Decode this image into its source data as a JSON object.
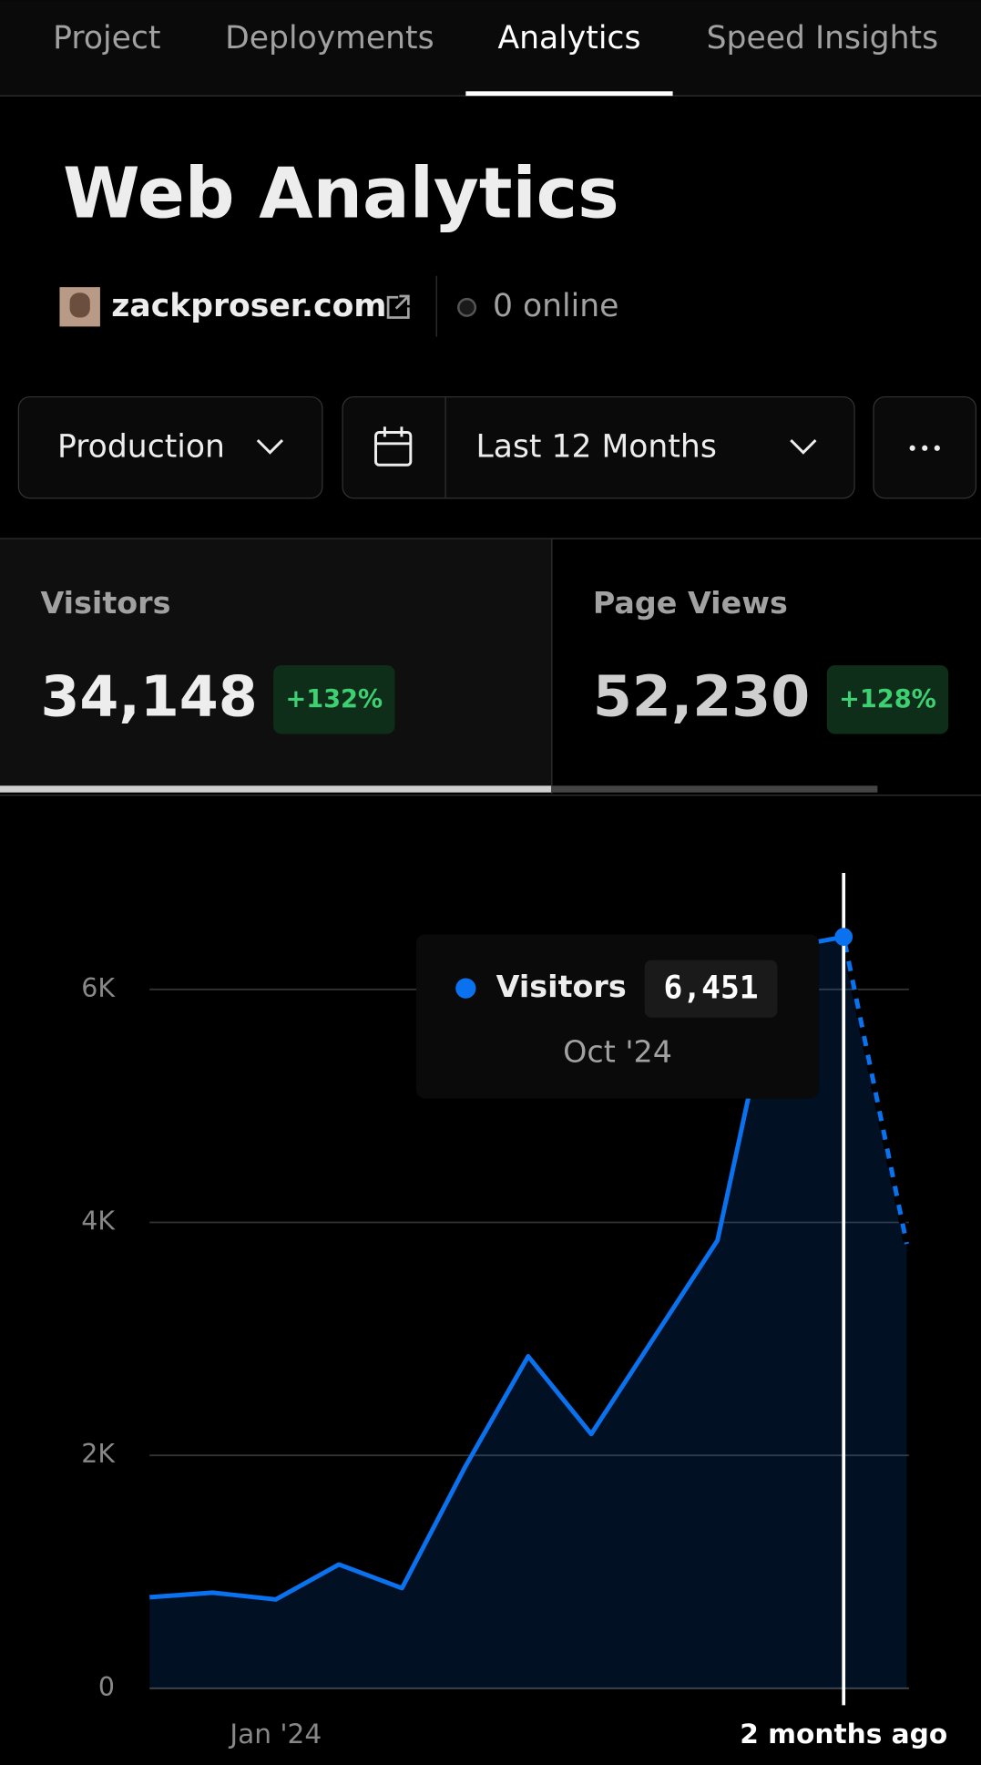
{
  "tabs": [
    "Project",
    "Deployments",
    "Analytics",
    "Speed Insights"
  ],
  "header": {
    "title": "Web Analytics",
    "site": "zackproser.com",
    "online": "0 online"
  },
  "filters": {
    "environment": "Production",
    "range": "Last 12 Months"
  },
  "metrics": [
    {
      "label": "Visitors",
      "value": "34,148",
      "change": "+132%"
    },
    {
      "label": "Page Views",
      "value": "52,230",
      "change": "+128%"
    }
  ],
  "chart_data": {
    "type": "line",
    "categories": [
      null,
      null,
      "Jan '24",
      null,
      null,
      null,
      null,
      null,
      null,
      null,
      null,
      "2 months ago",
      null
    ],
    "series": [
      {
        "name": "Visitors",
        "color": "#0a72ef",
        "values": [
          782,
          821,
          763,
          1063,
          860,
          1900,
          2850,
          2183,
          3015,
          3845,
          6350,
          6451,
          3815
        ]
      }
    ],
    "ylim": [
      0,
      7000
    ],
    "yticks": [
      0,
      {
        "value": 2000,
        "label": "2K"
      },
      {
        "value": 4000,
        "label": "4K"
      },
      {
        "value": 6000,
        "label": "6K"
      }
    ],
    "grid": true,
    "tooltip": {
      "value": 6451,
      "value_label": "6,451",
      "date": "Oct '24"
    }
  }
}
